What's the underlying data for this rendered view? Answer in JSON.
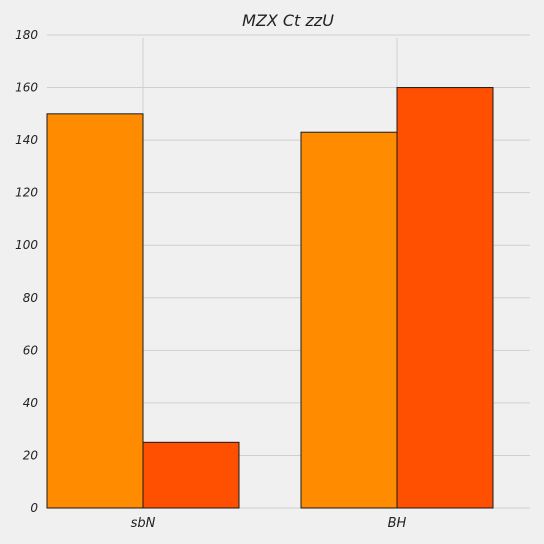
{
  "chart_data": {
    "type": "bar",
    "title": "MZX Ct zzU",
    "xlabel": "",
    "ylabel": "",
    "categories": [
      "sbN",
      "BH"
    ],
    "series": [
      {
        "values": [
          150,
          143
        ],
        "color": "#ff8c00"
      },
      {
        "values": [
          25,
          160
        ],
        "color": "#ff4f00"
      }
    ],
    "ylim": [
      0,
      180
    ],
    "yticks": [
      0,
      20,
      40,
      60,
      80,
      100,
      120,
      140,
      160,
      180
    ],
    "grid": true,
    "background": "#f0f0f0"
  }
}
